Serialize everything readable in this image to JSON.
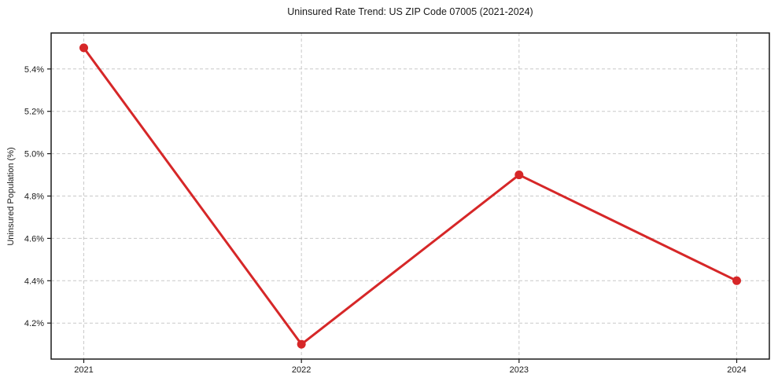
{
  "chart_data": {
    "type": "line",
    "title": "Uninsured Rate Trend: US ZIP Code 07005 (2021-2024)",
    "xlabel": "",
    "ylabel": "Uninsured Population (%)",
    "x": [
      2021,
      2022,
      2023,
      2024
    ],
    "y": [
      5.5,
      4.1,
      4.9,
      4.4
    ],
    "x_tick_values": [
      2021,
      2022,
      2023,
      2024
    ],
    "x_tick_labels": [
      "2021",
      "2022",
      "2023",
      "2024"
    ],
    "y_tick_values": [
      4.2,
      4.4,
      4.6,
      4.8,
      5.0,
      5.2,
      5.4
    ],
    "y_tick_labels": [
      "4.2%",
      "4.4%",
      "4.6%",
      "4.8%",
      "5.0%",
      "5.2%",
      "5.4%"
    ],
    "xlim": [
      2020.85,
      2024.15
    ],
    "ylim": [
      4.03,
      5.57
    ],
    "grid": true,
    "legend": "none",
    "line_color": "#d62728",
    "grid_color": "#c9c9c9",
    "spine_color": "#1a1a1a",
    "marker": "circle",
    "marker_size": 5.5,
    "line_width": 3
  }
}
